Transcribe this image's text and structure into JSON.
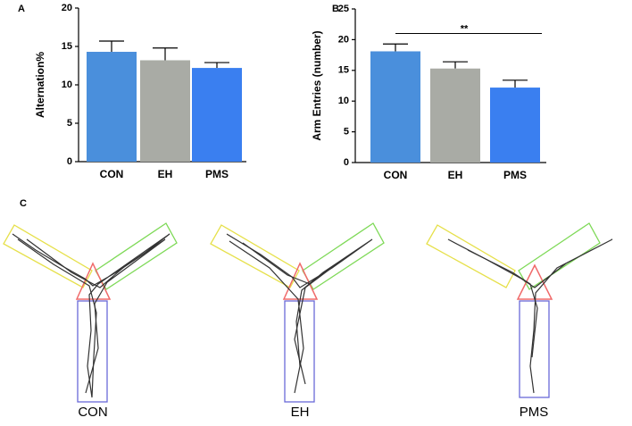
{
  "chart_data": [
    {
      "type": "bar",
      "panel_label": "A",
      "ylabel": "Alternation%",
      "categories": [
        "CON",
        "EH",
        "PMS"
      ],
      "values": [
        14.3,
        13.2,
        12.2
      ],
      "errors": [
        1.4,
        1.6,
        0.7
      ],
      "colors": [
        "#4a8fdc",
        "#a9aba5",
        "#3a7ff0"
      ],
      "ylim": [
        0,
        20
      ],
      "yticks": [
        0,
        5,
        10,
        15,
        20
      ]
    },
    {
      "type": "bar",
      "panel_label": "B",
      "ylabel": "Arm Entries (number)",
      "categories": [
        "CON",
        "EH",
        "PMS"
      ],
      "values": [
        18.1,
        15.3,
        12.2
      ],
      "errors": [
        1.2,
        1.1,
        1.2
      ],
      "colors": [
        "#4a8fdc",
        "#a9aba5",
        "#3a7ff0"
      ],
      "ylim": [
        0,
        25
      ],
      "yticks": [
        0,
        5,
        10,
        15,
        20,
        25
      ],
      "significance": {
        "from": 0,
        "to": 2,
        "y": 21,
        "label": "**"
      }
    }
  ],
  "panel_c": {
    "label": "C",
    "mazes": [
      "CON",
      "EH",
      "PMS"
    ]
  }
}
